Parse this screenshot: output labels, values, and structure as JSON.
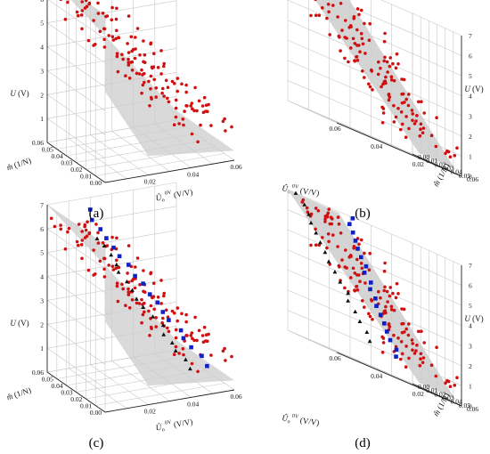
{
  "figure": {
    "panels": [
      {
        "label": "(a)",
        "view": "front",
        "series": [
          "red"
        ]
      },
      {
        "label": "(b)",
        "view": "side",
        "series": [
          "red"
        ]
      },
      {
        "label": "(c)",
        "view": "front",
        "series": [
          "red",
          "blue",
          "black"
        ]
      },
      {
        "label": "(d)",
        "view": "side",
        "series": [
          "red",
          "blue",
          "black"
        ]
      }
    ]
  },
  "chart_data": {
    "type": "scatter",
    "dimensions": 3,
    "axes": {
      "x": {
        "label": "Û",
        "label_sup": "0V",
        "label_unit": " (V/V)",
        "ticks": [
          "0.02",
          "0.04",
          "0.06"
        ],
        "range": [
          0,
          0.06
        ]
      },
      "y": {
        "label": "m̂ (1/N)",
        "ticks": [
          "0.00",
          "0.01",
          "0.02",
          "0.03",
          "0.04",
          "0.05",
          "0.06"
        ],
        "range": [
          0,
          0.06
        ]
      },
      "z": {
        "label": "U (V)",
        "ticks": [
          "1",
          "2",
          "3",
          "4",
          "5",
          "6",
          "7"
        ],
        "range": [
          0,
          7
        ]
      }
    },
    "side_axes": {
      "x_ticks": [
        "0.02",
        "0.04",
        "0.06"
      ],
      "y_ticks": [
        "0.00",
        "0.01",
        "0.02",
        "0.03",
        "0.04",
        "0.05",
        "0.06"
      ],
      "z_ticks": [
        "0",
        "1",
        "2",
        "3",
        "4",
        "5",
        "6",
        "7"
      ]
    },
    "plane": {
      "color": "#cccccc",
      "description_shape": "U ≈ 7 − 110·Û"
    },
    "series": [
      {
        "marker": "circle",
        "color": "#d01010",
        "count": 150,
        "spread": "plane"
      },
      {
        "marker": "square",
        "color": "#1020c8",
        "count": 18,
        "spread": "line",
        "line": {
          "from": [
            0.012,
            0.045,
            7
          ],
          "to": [
            0.05,
            0.005,
            1
          ]
        }
      },
      {
        "marker": "triangle",
        "color": "#111111",
        "count": 16,
        "spread": "line",
        "line": {
          "from": [
            0.0,
            0.01,
            7
          ],
          "to": [
            0.04,
            0.0,
            1.2
          ]
        }
      }
    ],
    "grid": true
  }
}
